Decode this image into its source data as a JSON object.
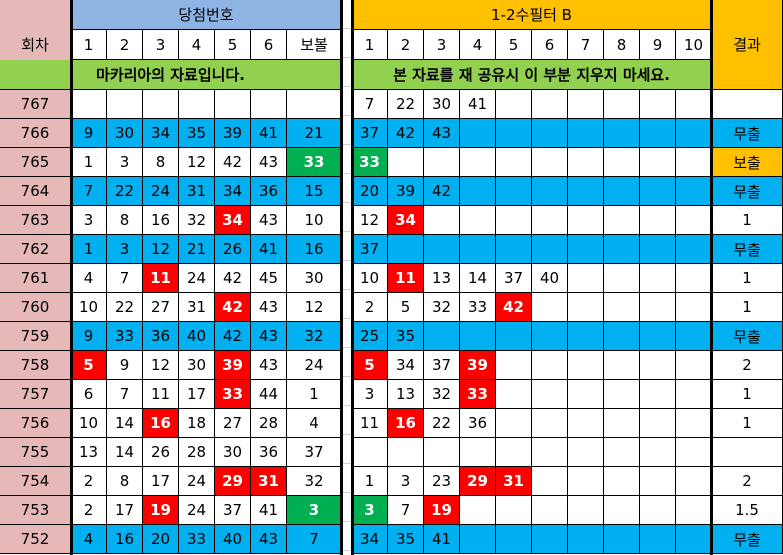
{
  "colors": {
    "round_bg": "#e6b8b7",
    "win_header_bg": "#8db4e2",
    "filter_header_bg": "#ffc000",
    "notice_bg": "#92d050",
    "miss_row_bg": "#00b0f0",
    "red": "#ff0000",
    "green": "#00b050",
    "bonus_result_bg": "#ffc000"
  },
  "header": {
    "round": "회차",
    "winning_numbers": "당첨번호",
    "filter": "1-2수필터 B",
    "result": "결과",
    "main_cols": [
      "1",
      "2",
      "3",
      "4",
      "5",
      "6",
      "보볼"
    ],
    "filter_cols": [
      "1",
      "2",
      "3",
      "4",
      "5",
      "6",
      "7",
      "8",
      "9",
      "10"
    ],
    "notice_left": "마카리아의 자료입니다.",
    "notice_right": "본 자료를 재 공유시 이 부분 지우지 마세요."
  },
  "rows": [
    {
      "round": "767",
      "blue": false,
      "main": [
        "",
        "",
        "",
        "",
        "",
        "",
        ""
      ],
      "filter": [
        "7",
        "22",
        "30",
        "41",
        "",
        "",
        "",
        "",
        "",
        ""
      ],
      "result": "",
      "hl": []
    },
    {
      "round": "766",
      "blue": true,
      "main": [
        "9",
        "30",
        "34",
        "35",
        "39",
        "41",
        "21"
      ],
      "filter": [
        "37",
        "42",
        "43",
        "",
        "",
        "",
        "",
        "",
        "",
        ""
      ],
      "result": "무출",
      "hl": []
    },
    {
      "round": "765",
      "blue": false,
      "main": [
        "1",
        "3",
        "8",
        "12",
        "42",
        "43",
        "33"
      ],
      "filter": [
        "33",
        "",
        "",
        "",
        "",
        "",
        "",
        "",
        "",
        ""
      ],
      "result": "보출",
      "result_bg": "orange",
      "hl": [
        [
          "main",
          6,
          "green"
        ],
        [
          "filter",
          0,
          "green"
        ]
      ]
    },
    {
      "round": "764",
      "blue": true,
      "main": [
        "7",
        "22",
        "24",
        "31",
        "34",
        "36",
        "15"
      ],
      "filter": [
        "20",
        "39",
        "42",
        "",
        "",
        "",
        "",
        "",
        "",
        ""
      ],
      "result": "무출",
      "hl": []
    },
    {
      "round": "763",
      "blue": false,
      "main": [
        "3",
        "8",
        "16",
        "32",
        "34",
        "43",
        "10"
      ],
      "filter": [
        "12",
        "34",
        "",
        "",
        "",
        "",
        "",
        "",
        "",
        ""
      ],
      "result": "1",
      "hl": [
        [
          "main",
          4,
          "red"
        ],
        [
          "filter",
          1,
          "red"
        ]
      ]
    },
    {
      "round": "762",
      "blue": true,
      "main": [
        "1",
        "3",
        "12",
        "21",
        "26",
        "41",
        "16"
      ],
      "filter": [
        "37",
        "",
        "",
        "",
        "",
        "",
        "",
        "",
        "",
        ""
      ],
      "result": "무출",
      "hl": []
    },
    {
      "round": "761",
      "blue": false,
      "main": [
        "4",
        "7",
        "11",
        "24",
        "42",
        "45",
        "30"
      ],
      "filter": [
        "10",
        "11",
        "13",
        "14",
        "37",
        "40",
        "",
        "",
        "",
        ""
      ],
      "result": "1",
      "hl": [
        [
          "main",
          2,
          "red"
        ],
        [
          "filter",
          1,
          "red"
        ]
      ]
    },
    {
      "round": "760",
      "blue": false,
      "main": [
        "10",
        "22",
        "27",
        "31",
        "42",
        "43",
        "12"
      ],
      "filter": [
        "2",
        "5",
        "32",
        "33",
        "42",
        "",
        "",
        "",
        "",
        ""
      ],
      "result": "1",
      "hl": [
        [
          "main",
          4,
          "red"
        ],
        [
          "filter",
          4,
          "red"
        ]
      ]
    },
    {
      "round": "759",
      "blue": true,
      "main": [
        "9",
        "33",
        "36",
        "40",
        "42",
        "43",
        "32"
      ],
      "filter": [
        "25",
        "35",
        "",
        "",
        "",
        "",
        "",
        "",
        "",
        ""
      ],
      "result": "무출",
      "hl": []
    },
    {
      "round": "758",
      "blue": false,
      "main": [
        "5",
        "9",
        "12",
        "30",
        "39",
        "43",
        "24"
      ],
      "filter": [
        "5",
        "34",
        "37",
        "39",
        "",
        "",
        "",
        "",
        "",
        ""
      ],
      "result": "2",
      "hl": [
        [
          "main",
          0,
          "red"
        ],
        [
          "main",
          4,
          "red"
        ],
        [
          "filter",
          0,
          "red"
        ],
        [
          "filter",
          3,
          "red"
        ]
      ]
    },
    {
      "round": "757",
      "blue": false,
      "main": [
        "6",
        "7",
        "11",
        "17",
        "33",
        "44",
        "1"
      ],
      "filter": [
        "3",
        "13",
        "32",
        "33",
        "",
        "",
        "",
        "",
        "",
        ""
      ],
      "result": "1",
      "hl": [
        [
          "main",
          4,
          "red"
        ],
        [
          "filter",
          3,
          "red"
        ]
      ]
    },
    {
      "round": "756",
      "blue": false,
      "main": [
        "10",
        "14",
        "16",
        "18",
        "27",
        "28",
        "4"
      ],
      "filter": [
        "11",
        "16",
        "22",
        "36",
        "",
        "",
        "",
        "",
        "",
        ""
      ],
      "result": "1",
      "hl": [
        [
          "main",
          2,
          "red"
        ],
        [
          "filter",
          1,
          "red"
        ]
      ]
    },
    {
      "round": "755",
      "blue": false,
      "main": [
        "13",
        "14",
        "26",
        "28",
        "30",
        "36",
        "37"
      ],
      "filter": [
        "",
        "",
        "",
        "",
        "",
        "",
        "",
        "",
        "",
        ""
      ],
      "result": "",
      "hl": []
    },
    {
      "round": "754",
      "blue": false,
      "main": [
        "2",
        "8",
        "17",
        "24",
        "29",
        "31",
        "32"
      ],
      "filter": [
        "1",
        "3",
        "23",
        "29",
        "31",
        "",
        "",
        "",
        "",
        ""
      ],
      "result": "2",
      "hl": [
        [
          "main",
          4,
          "red"
        ],
        [
          "main",
          5,
          "red"
        ],
        [
          "filter",
          3,
          "red"
        ],
        [
          "filter",
          4,
          "red"
        ]
      ]
    },
    {
      "round": "753",
      "blue": false,
      "main": [
        "2",
        "17",
        "19",
        "24",
        "37",
        "41",
        "3"
      ],
      "filter": [
        "3",
        "7",
        "19",
        "",
        "",
        "",
        "",
        "",
        "",
        ""
      ],
      "result": "1.5",
      "hl": [
        [
          "main",
          2,
          "red"
        ],
        [
          "main",
          6,
          "green"
        ],
        [
          "filter",
          0,
          "green"
        ],
        [
          "filter",
          2,
          "red"
        ]
      ]
    },
    {
      "round": "752",
      "blue": true,
      "main": [
        "4",
        "16",
        "20",
        "33",
        "40",
        "43",
        "7"
      ],
      "filter": [
        "34",
        "35",
        "41",
        "",
        "",
        "",
        "",
        "",
        "",
        ""
      ],
      "result": "무출",
      "hl": []
    }
  ]
}
